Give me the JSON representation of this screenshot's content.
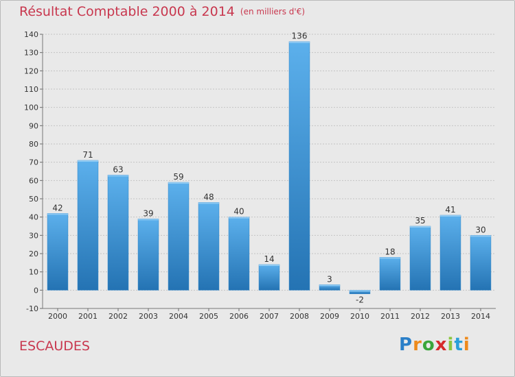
{
  "title": "Résultat Comptable 2000 à 2014",
  "subtitle": "(en milliers d'€)",
  "town": "ESCAUDES",
  "logo": {
    "text": "Proxiti",
    "letters": [
      "P",
      "r",
      "o",
      "x",
      "i",
      "t",
      "i"
    ],
    "colors": [
      "#2a7fc8",
      "#ee8a1b",
      "#3aa53a",
      "#d62b2b",
      "#8cc63f",
      "#2a9fd8",
      "#ee8a1b"
    ]
  },
  "colors": {
    "bar": "#3d97de",
    "bar_light": "#5aaeea",
    "bar_dark": "#2475b5",
    "title": "#c8374e",
    "grid": "#bdbdbd",
    "background": "#e9e9e9"
  },
  "chart_data": {
    "type": "bar",
    "categories": [
      "2000",
      "2001",
      "2002",
      "2003",
      "2004",
      "2005",
      "2006",
      "2007",
      "2008",
      "2009",
      "2010",
      "2011",
      "2012",
      "2013",
      "2014"
    ],
    "values": [
      42,
      71,
      63,
      39,
      59,
      48,
      40,
      14,
      136,
      3,
      -2,
      18,
      35,
      41,
      30
    ],
    "ylim": [
      -10,
      140
    ],
    "yticks": [
      -10,
      0,
      10,
      20,
      30,
      40,
      50,
      60,
      70,
      80,
      90,
      100,
      110,
      120,
      130,
      140
    ],
    "grid": true,
    "xlabel": "",
    "ylabel": ""
  }
}
